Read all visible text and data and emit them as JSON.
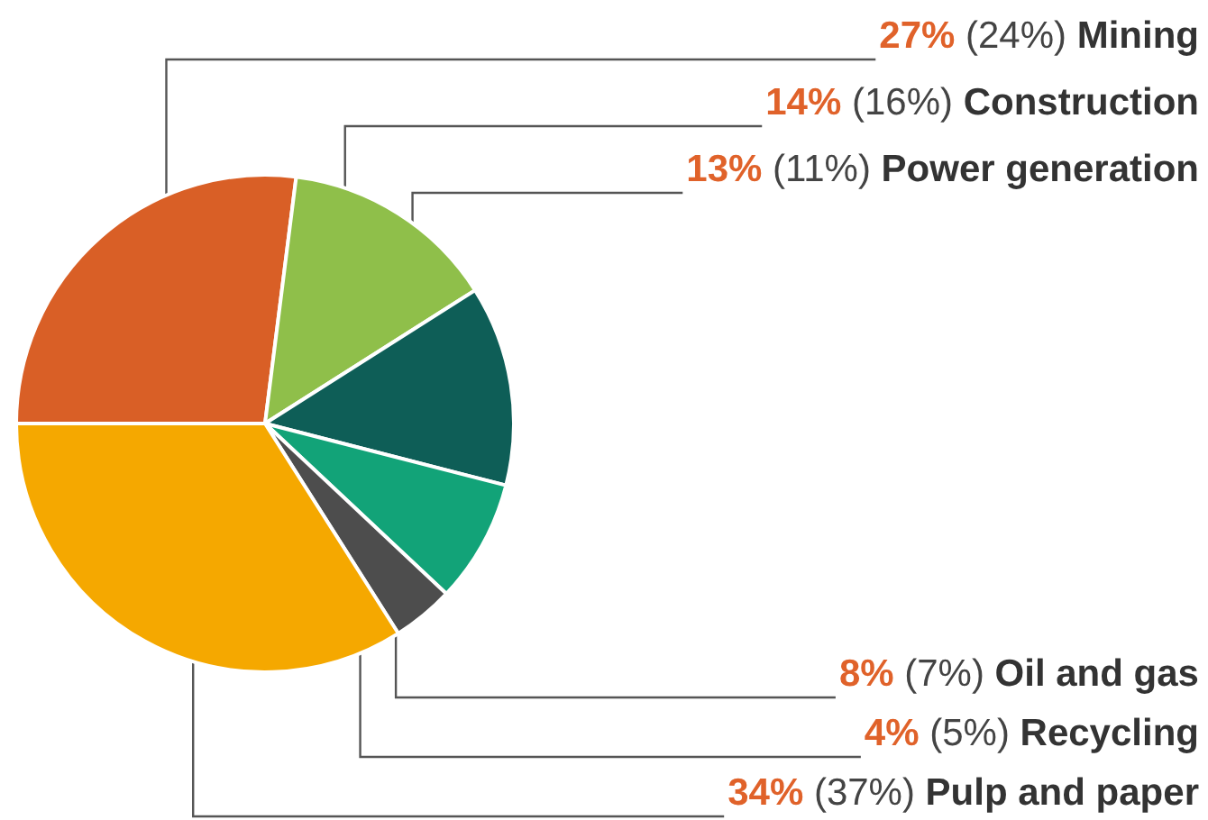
{
  "chart_data": {
    "type": "pie",
    "categories": [
      "Mining",
      "Construction",
      "Power generation",
      "Oil and gas",
      "Recycling",
      "Pulp and paper"
    ],
    "values": [
      27,
      14,
      13,
      8,
      4,
      34
    ],
    "value_labels": [
      "27% (24%)",
      "14% (16%)",
      "13% (11%)",
      "8% (7%)",
      "4% (5%)",
      "34% (37%)"
    ],
    "colors": [
      "#d95f26",
      "#8fbf4a",
      "#0e5e57",
      "#12a378",
      "#4d4d4d",
      "#f5a800"
    ],
    "legend": false
  }
}
